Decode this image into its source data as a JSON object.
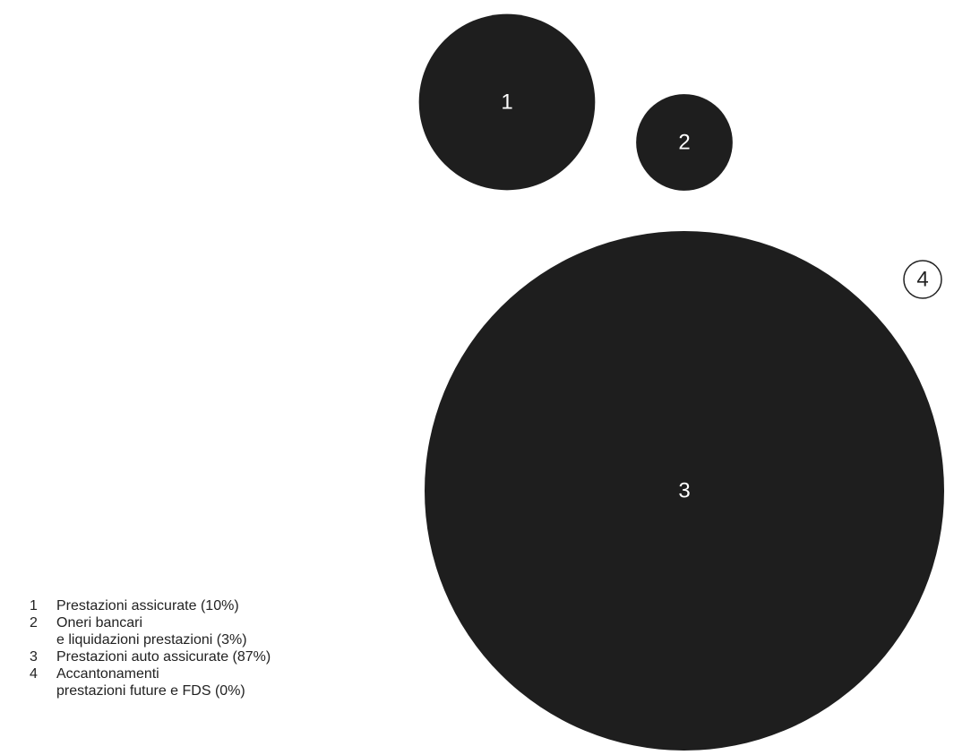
{
  "colors": {
    "bubble_fill": "#1e1e1e",
    "bubble_label": "#ffffff",
    "outline": "#222222",
    "text": "#222222"
  },
  "chart_data": {
    "type": "bubble",
    "unit": "%",
    "series": [
      {
        "id": "1",
        "label": "Prestazioni assicurate (10%)",
        "value": 10
      },
      {
        "id": "2",
        "label": "Oneri bancari\ne liquidazioni prestazioni (3%)",
        "value": 3
      },
      {
        "id": "3",
        "label": "Prestazioni auto assicurate (87%)",
        "value": 87
      },
      {
        "id": "4",
        "label": "Accantonamenti\nprestazioni future e FDS (0%)",
        "value": 0
      }
    ]
  }
}
